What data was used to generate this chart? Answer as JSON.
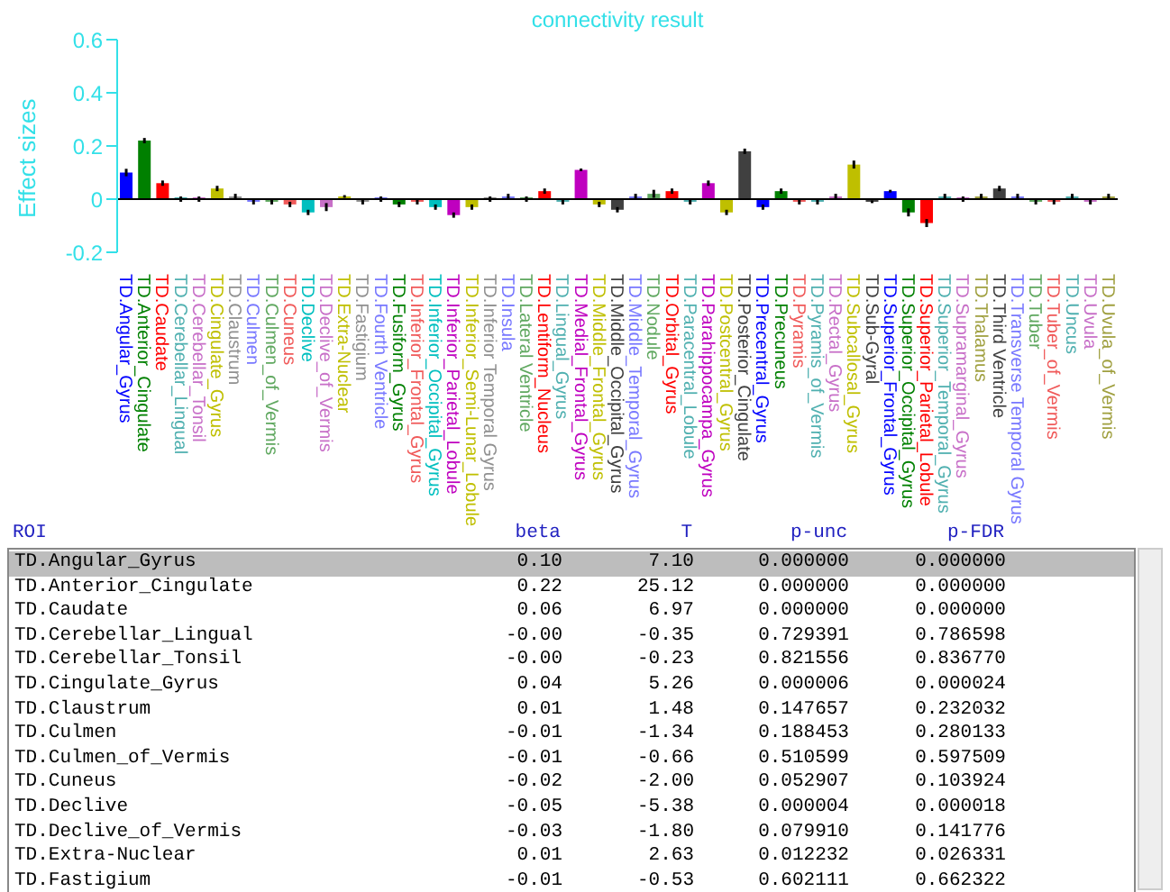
{
  "chart_data": [
    {
      "type": "bar",
      "title": "connectivity result",
      "ylabel": "Effect sizes",
      "categories": [
        "TD.Angular_Gyrus",
        "TD.Anterior_Cingulate",
        "TD.Caudate",
        "TD.Cerebellar_Lingual",
        "TD.Cerebellar_Tonsil",
        "TD.Cingulate_Gyrus",
        "TD.Claustrum",
        "TD.Culmen",
        "TD.Culmen_of_Vermis",
        "TD.Cuneus",
        "TD.Declive",
        "TD.Declive_of_Vermis",
        "TD.Extra-Nuclear",
        "TD.Fastigium",
        "TD.Fourth Ventricle",
        "TD.Fusiform_Gyrus",
        "TD.Inferior_Frontal_Gyrus",
        "TD.Inferior_Occipital_Gyrus",
        "TD.Inferior_Parietal_Lobule",
        "TD.Inferior_Semi-Lunar_Lobule",
        "TD.Inferior Temporal Gyrus",
        "TD.Insula",
        "TD.Lateral Ventricle",
        "TD.Lentiform_Nucleus",
        "TD.Lingual_Gyrus",
        "TD.Medial_Frontal_Gyrus",
        "TD.Middle_Frontal_Gyrus",
        "TD.Middle_Occipital_Gyrus",
        "TD.Middle_Temporal_Gyrus",
        "TD.Nodule",
        "TD.Orbital_Gyrus",
        "TD.Paracentral_Lobule",
        "TD.Parahippocampa_Gyrus",
        "TD.Postcentral_Gyrus",
        "TD.Posterior_Cingulate",
        "TD.Precentral_Gyrus",
        "TD.Precuneus",
        "TD.Pyramis",
        "TD.Pyramis_of_Vermis",
        "TD.Rectal_Gyrus",
        "TD.Subcallosal_Gyrus",
        "TD.Sub-Gyral",
        "TD.Superior_Frontal_Gyrus",
        "TD.Superior_Occipital_Gyrus",
        "TD.Superior_Parietal_Lobule",
        "TD.Superior_Temporal_Gyrus",
        "TD.Supramarginal_Gyrus",
        "TD.Thalamus",
        "TD.Third Ventricle",
        "TD.Transverse Temporal Gyrus",
        "TD.Tuber",
        "TD.Tuber_of_Vermis",
        "TD.Uncus",
        "TD.Uvula",
        "TD.Uvula_of_Vermis"
      ],
      "values": [
        0.1,
        0.22,
        0.06,
        0.0,
        0.0,
        0.04,
        0.01,
        -0.01,
        -0.01,
        -0.02,
        -0.05,
        -0.03,
        0.01,
        -0.01,
        0.0,
        -0.02,
        -0.01,
        -0.03,
        -0.06,
        -0.03,
        0.0,
        0.01,
        0.0,
        0.03,
        -0.01,
        0.11,
        -0.02,
        -0.04,
        0.01,
        0.02,
        0.03,
        -0.01,
        0.06,
        -0.05,
        0.18,
        -0.03,
        0.03,
        -0.01,
        -0.01,
        0.01,
        0.13,
        -0.01,
        0.03,
        -0.05,
        -0.09,
        0.01,
        0.0,
        0.01,
        0.04,
        0.01,
        -0.01,
        -0.01,
        0.01,
        -0.01,
        0.01
      ],
      "errors": [
        0.014,
        0.01,
        0.01,
        0.01,
        0.01,
        0.01,
        0.01,
        0.01,
        0.01,
        0.01,
        0.01,
        0.015,
        0.005,
        0.01,
        0.01,
        0.01,
        0.01,
        0.01,
        0.01,
        0.01,
        0.01,
        0.01,
        0.01,
        0.01,
        0.01,
        0.005,
        0.01,
        0.01,
        0.01,
        0.015,
        0.01,
        0.01,
        0.01,
        0.01,
        0.01,
        0.01,
        0.01,
        0.01,
        0.01,
        0.01,
        0.015,
        0.005,
        0.005,
        0.015,
        0.015,
        0.01,
        0.01,
        0.01,
        0.01,
        0.01,
        0.01,
        0.01,
        0.01,
        0.01,
        0.01
      ],
      "colors": [
        "#0000ff",
        "#008000",
        "#ff0000",
        "#50b0b0",
        "#c870c8",
        "#bfbf00",
        "#909090",
        "#7878ff",
        "#60a860",
        "#f05a5a",
        "#00bfbf",
        "#c870c8",
        "#bfbf00",
        "#909090",
        "#7878ff",
        "#008000",
        "#f05a5a",
        "#00bfbf",
        "#bf00bf",
        "#bfbf00",
        "#909090",
        "#7878ff",
        "#60a860",
        "#ff0000",
        "#50b0b0",
        "#bf00bf",
        "#bfbf00",
        "#404040",
        "#7878ff",
        "#60a860",
        "#ff0000",
        "#50b0b0",
        "#bf00bf",
        "#bfbf00",
        "#404040",
        "#0000ff",
        "#008000",
        "#f05a5a",
        "#50b0b0",
        "#c870c8",
        "#bfbf00",
        "#404040",
        "#0000ff",
        "#008000",
        "#ff0000",
        "#50b0b0",
        "#c870c8",
        "#a0a040",
        "#404040",
        "#7878ff",
        "#60a860",
        "#f05a5a",
        "#50b0b0",
        "#c870c8",
        "#a0a040"
      ],
      "ylim": [
        -0.2,
        0.6
      ],
      "yticks": [
        -0.2,
        0,
        0.2,
        0.4,
        0.6
      ],
      "ref_lines": [
        {
          "axis": "y",
          "value": 0,
          "color": "#000000"
        }
      ]
    },
    {
      "type": "other",
      "ylabel": "ROI",
      "categories": [
        "beta",
        "T",
        "p-unc",
        "p-FDR"
      ],
      "y_categories": [
        "TD.Angular_Gyrus",
        "TD.Anterior_Cingulate",
        "TD.Caudate",
        "TD.Cerebellar_Lingual",
        "TD.Cerebellar_Tonsil",
        "TD.Cingulate_Gyrus",
        "TD.Claustrum",
        "TD.Culmen",
        "TD.Culmen_of_Vermis",
        "TD.Cuneus",
        "TD.Declive",
        "TD.Declive_of_Vermis",
        "TD.Extra-Nuclear",
        "TD.Fastigium"
      ],
      "cell_labels": [
        [
          "0.10",
          "7.10",
          "0.000000",
          "0.000000"
        ],
        [
          "0.22",
          "25.12",
          "0.000000",
          "0.000000"
        ],
        [
          "0.06",
          "6.97",
          "0.000000",
          "0.000000"
        ],
        [
          "-0.00",
          "-0.35",
          "0.729391",
          "0.786598"
        ],
        [
          "-0.00",
          "-0.23",
          "0.821556",
          "0.836770"
        ],
        [
          "0.04",
          "5.26",
          "0.000006",
          "0.000024"
        ],
        [
          "0.01",
          "1.48",
          "0.147657",
          "0.232032"
        ],
        [
          "-0.01",
          "-1.34",
          "0.188453",
          "0.280133"
        ],
        [
          "-0.01",
          "-0.66",
          "0.510599",
          "0.597509"
        ],
        [
          "-0.02",
          "-2.00",
          "0.052907",
          "0.103924"
        ],
        [
          "-0.05",
          "-5.38",
          "0.000004",
          "0.000018"
        ],
        [
          "-0.03",
          "-1.80",
          "0.079910",
          "0.141776"
        ],
        [
          "0.01",
          "2.63",
          "0.012232",
          "0.026331"
        ],
        [
          "-0.01",
          "-0.53",
          "0.602111",
          "0.662322"
        ]
      ]
    }
  ]
}
